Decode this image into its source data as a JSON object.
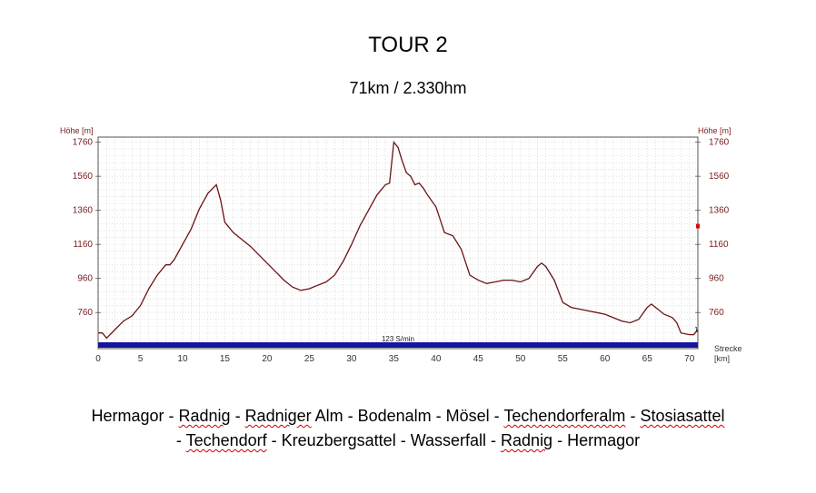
{
  "title": "TOUR 2",
  "subtitle": "71km / 2.330hm",
  "route_line1": [
    "Hermagor - ",
    "Radnig",
    " - ",
    "Radniger",
    " Alm - Bodenalm - Mösel - ",
    "Techendorferalm",
    " - ",
    "Stosiasattel"
  ],
  "route_line2": [
    "- ",
    "Techendorf",
    " - Kreuzbergsattel - Wasserfall - ",
    "Radnig",
    " - Hermagor"
  ],
  "route_line1_spellcheck": [
    false,
    true,
    false,
    true,
    false,
    true,
    false,
    true
  ],
  "route_line2_spellcheck": [
    false,
    true,
    false,
    true,
    false
  ],
  "colors": {
    "profile": "#6b1414",
    "baseline_bar": "#1414a0",
    "grid": "#b4b4b4",
    "axis_text": "#7a2020",
    "marker": "#d01010"
  },
  "chart_data": {
    "type": "line",
    "ylabel_left": "Höhe [m]",
    "ylabel_right": "Höhe [m]",
    "xlabel": "Strecke [km]",
    "xlabel_parts": [
      "Strecke",
      "[km]"
    ],
    "xlim": [
      0,
      71
    ],
    "ylim": [
      580,
      1790
    ],
    "yticks": [
      760,
      960,
      1160,
      1360,
      1560,
      1760
    ],
    "xticks": [
      0,
      5,
      10,
      15,
      20,
      25,
      30,
      35,
      40,
      45,
      50,
      55,
      60,
      65,
      70
    ],
    "grid": true,
    "bar_label": "123 S/min",
    "end_label": "1",
    "marker_right_value": 1270,
    "series": [
      {
        "x": [
          0,
          0.5,
          1,
          2,
          3,
          4,
          5,
          6,
          7,
          8,
          8.5,
          9,
          10,
          11,
          12,
          13,
          14,
          14.5,
          15,
          16,
          17,
          18,
          19,
          20,
          21,
          22,
          23,
          24,
          25,
          26,
          27,
          28,
          29,
          30,
          31,
          32,
          33,
          34,
          34.5,
          35,
          35.5,
          36,
          36.5,
          37,
          37.5,
          38,
          38.5,
          39,
          40,
          41,
          42,
          43,
          44,
          45,
          46,
          47,
          48,
          49,
          50,
          51,
          52,
          52.5,
          53,
          54,
          55,
          56,
          57,
          58,
          59,
          60,
          61,
          62,
          63,
          64,
          65,
          65.5,
          66,
          67,
          68,
          68.5,
          69,
          70,
          70.5,
          71
        ],
        "y": [
          640,
          640,
          610,
          660,
          710,
          740,
          800,
          900,
          980,
          1040,
          1040,
          1070,
          1160,
          1250,
          1370,
          1460,
          1510,
          1420,
          1290,
          1230,
          1190,
          1150,
          1100,
          1050,
          1000,
          950,
          910,
          890,
          900,
          920,
          940,
          980,
          1060,
          1160,
          1270,
          1360,
          1450,
          1510,
          1520,
          1760,
          1730,
          1650,
          1580,
          1560,
          1510,
          1520,
          1490,
          1450,
          1380,
          1230,
          1210,
          1130,
          980,
          950,
          930,
          940,
          950,
          950,
          940,
          960,
          1030,
          1050,
          1030,
          950,
          820,
          790,
          780,
          770,
          760,
          750,
          730,
          710,
          700,
          720,
          790,
          810,
          790,
          750,
          730,
          700,
          640,
          630,
          630,
          660
        ]
      }
    ]
  }
}
